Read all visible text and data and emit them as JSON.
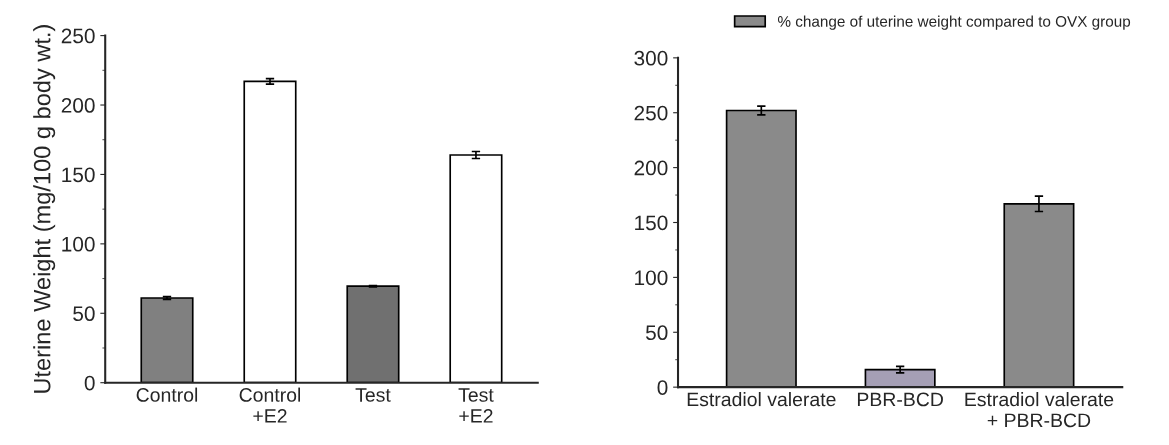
{
  "chart_data": [
    {
      "type": "bar",
      "ylabel": "Uterine Weight (mg/100 g body wt.)",
      "categories": [
        "Control",
        "Control\n+E2",
        "Test",
        "Test\n+E2"
      ],
      "values": [
        61,
        217,
        69.5,
        164
      ],
      "errors": [
        1,
        2,
        0.5,
        2.5
      ],
      "colors": [
        "#808080",
        "#ffffff",
        "#707070",
        "#ffffff"
      ],
      "ylim": [
        0,
        250
      ],
      "yticks": [
        0,
        50,
        100,
        150,
        200,
        250
      ]
    },
    {
      "type": "bar",
      "categories": [
        "Estradiol valerate",
        "PBR-BCD",
        "Estradiol valerate\n+ PBR-BCD"
      ],
      "series": [
        {
          "name": "% change of uterine weight compared to OVX group",
          "colors": [
            "#8a8a8a",
            "#a59fb5",
            "#8a8a8a"
          ],
          "values": [
            252,
            16,
            167
          ],
          "errors": [
            4,
            3,
            7
          ]
        }
      ],
      "ylim": [
        0,
        300
      ],
      "yticks": [
        0,
        50,
        100,
        150,
        200,
        250,
        300
      ],
      "legend": "top right"
    }
  ]
}
